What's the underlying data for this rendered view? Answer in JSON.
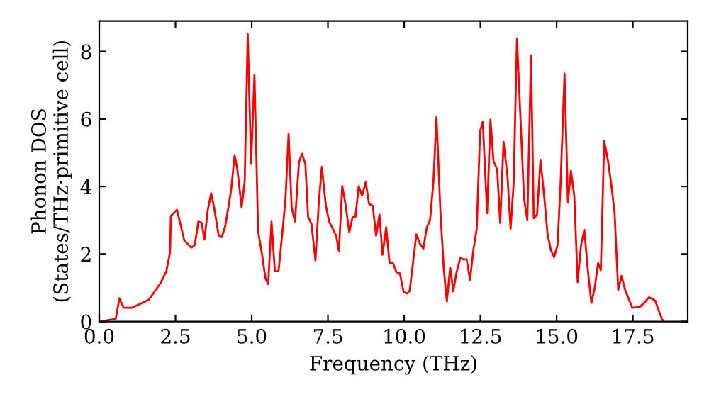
{
  "chart_data": {
    "type": "line",
    "xlabel": "Frequency (THz)",
    "ylabel": "Phonon DOS\n(States/THz·primitive cell)",
    "xlim": [
      0,
      19.3
    ],
    "ylim": [
      0,
      8.9
    ],
    "xticks": [
      {
        "value": 0,
        "label": "0.0"
      },
      {
        "value": 2.5,
        "label": "2.5"
      },
      {
        "value": 5,
        "label": "5.0"
      },
      {
        "value": 7.5,
        "label": "7.5"
      },
      {
        "value": 10,
        "label": "10.0"
      },
      {
        "value": 12.5,
        "label": "12.5"
      },
      {
        "value": 15,
        "label": "15.0"
      },
      {
        "value": 17.5,
        "label": "17.5"
      }
    ],
    "yticks": [
      0,
      2,
      4,
      6,
      8
    ],
    "grid": false,
    "marker": "none",
    "line_style": "solid",
    "series": [
      {
        "color": "#ff0000",
        "x": [
          0,
          0.54,
          0.66,
          0.8,
          1.08,
          1.62,
          2.01,
          2.2,
          2.32,
          2.35,
          2.55,
          2.79,
          3.02,
          3.13,
          3.25,
          3.36,
          3.45,
          3.56,
          3.67,
          3.76,
          3.92,
          4.02,
          4.13,
          4.26,
          4.33,
          4.44,
          4.53,
          4.67,
          4.77,
          4.87,
          4.98,
          5.09,
          5.21,
          5.34,
          5.45,
          5.54,
          5.65,
          5.76,
          5.88,
          6.04,
          6.11,
          6.21,
          6.31,
          6.42,
          6.55,
          6.65,
          6.76,
          6.85,
          6.96,
          7.09,
          7.2,
          7.3,
          7.43,
          7.54,
          7.66,
          7.77,
          7.86,
          7.97,
          8.08,
          8.2,
          8.31,
          8.4,
          8.51,
          8.62,
          8.74,
          8.85,
          8.97,
          9.08,
          9.19,
          9.29,
          9.41,
          9.52,
          9.64,
          9.75,
          9.86,
          9.98,
          10.09,
          10.18,
          10.29,
          10.4,
          10.52,
          10.63,
          10.74,
          10.85,
          10.96,
          11.06,
          11.19,
          11.3,
          11.4,
          11.51,
          11.61,
          11.71,
          11.84,
          11.95,
          12.05,
          12.16,
          12.27,
          12.38,
          12.49,
          12.58,
          12.72,
          12.83,
          12.93,
          13.05,
          13.15,
          13.26,
          13.39,
          13.49,
          13.59,
          13.7,
          13.8,
          13.93,
          14.04,
          14.16,
          14.25,
          14.36,
          14.47,
          14.59,
          14.7,
          14.81,
          14.92,
          15.03,
          15.13,
          15.26,
          15.37,
          15.47,
          15.58,
          15.69,
          15.8,
          15.91,
          16.02,
          16.14,
          16.25,
          16.36,
          16.45,
          16.56,
          16.68,
          16.79,
          16.9,
          17.02,
          17.13,
          17.25,
          17.48,
          17.72,
          17.87,
          18.03,
          18.23,
          18.45,
          18.52
        ],
        "values": [
          0,
          0.08,
          0.69,
          0.41,
          0.41,
          0.64,
          1.14,
          1.49,
          2.05,
          3.13,
          3.31,
          2.4,
          2.19,
          2.26,
          2.96,
          2.92,
          2.43,
          3.31,
          3.8,
          3.41,
          2.54,
          2.5,
          2.82,
          3.52,
          3.94,
          4.93,
          4.51,
          3.38,
          4.15,
          8.51,
          4.67,
          7.31,
          2.68,
          1.98,
          1.28,
          1.11,
          2.96,
          1.49,
          1.49,
          2.96,
          3.66,
          5.56,
          3.38,
          2.96,
          4.72,
          4.97,
          4.67,
          3.1,
          2.89,
          1.81,
          3.52,
          4.58,
          3.45,
          2.96,
          2.75,
          2.54,
          2.09,
          4.01,
          3.45,
          2.65,
          3.1,
          3.09,
          4.01,
          3.73,
          4.13,
          3.48,
          3.43,
          2.54,
          3.17,
          1.98,
          2.79,
          1.74,
          1.72,
          1.46,
          1.43,
          0.88,
          0.83,
          0.9,
          1.74,
          2.58,
          2.3,
          2.16,
          2.78,
          3.0,
          4.15,
          6.05,
          3.24,
          1.56,
          0.6,
          1.6,
          0.9,
          1.42,
          1.88,
          1.84,
          1.84,
          1.23,
          2.12,
          2.75,
          5.63,
          5.92,
          3.21,
          5.98,
          4.75,
          4.51,
          2.92,
          5.32,
          4.29,
          2.75,
          4.08,
          8.37,
          6.33,
          3.66,
          3.0,
          7.87,
          3.06,
          3.17,
          4.79,
          3.73,
          2.61,
          2.12,
          1.91,
          2.26,
          4.08,
          7.34,
          3.52,
          4.46,
          3.73,
          1.17,
          2.26,
          2.72,
          1.56,
          0.55,
          1.0,
          1.73,
          1.52,
          5.35,
          4.79,
          4.08,
          3.24,
          0.93,
          1.35,
          0.93,
          0.41,
          0.43,
          0.55,
          0.72,
          0.62,
          0.08,
          0
        ]
      }
    ]
  }
}
